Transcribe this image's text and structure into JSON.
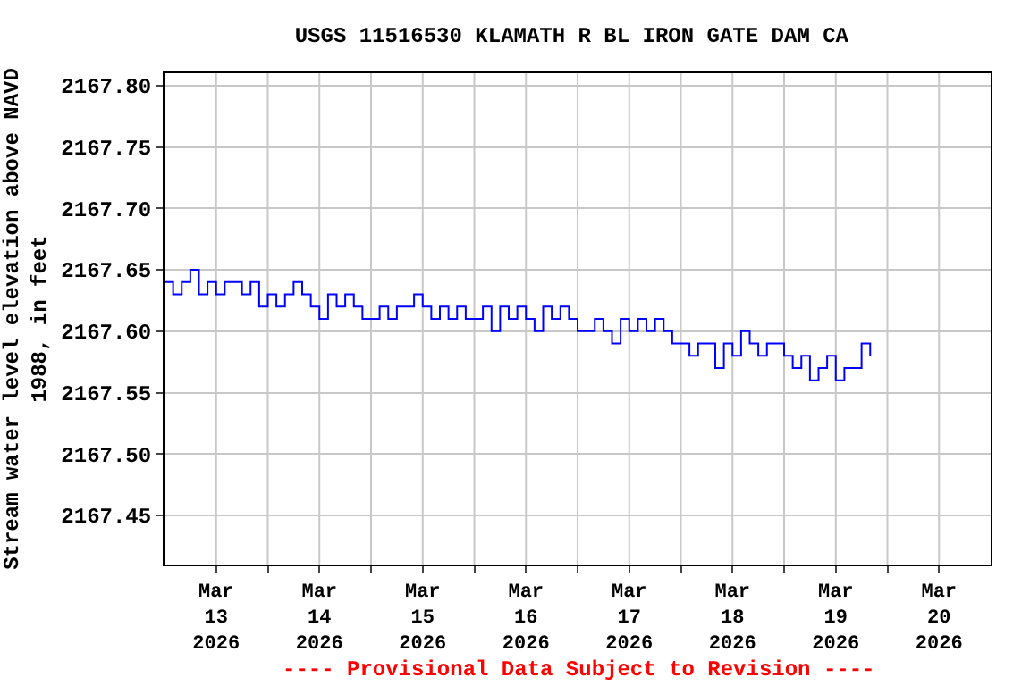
{
  "chart_data": {
    "type": "step",
    "title": "USGS 11516530 KLAMATH R BL IRON GATE DAM CA",
    "ylabel": "Stream water level elevation above NAVD\n1988, in feet",
    "annotations": [
      "---- Provisional Data Subject to Revision ----"
    ],
    "x": [
      "2026-03-13T00:00",
      "2026-03-13T02:00",
      "2026-03-13T04:00",
      "2026-03-13T06:00",
      "2026-03-13T08:00",
      "2026-03-13T10:00",
      "2026-03-13T12:00",
      "2026-03-13T14:00",
      "2026-03-13T16:00",
      "2026-03-13T18:00",
      "2026-03-13T20:00",
      "2026-03-13T22:00",
      "2026-03-14T00:00",
      "2026-03-14T02:00",
      "2026-03-14T04:00",
      "2026-03-14T06:00",
      "2026-03-14T08:00",
      "2026-03-14T10:00",
      "2026-03-14T12:00",
      "2026-03-14T14:00",
      "2026-03-14T16:00",
      "2026-03-14T18:00",
      "2026-03-14T20:00",
      "2026-03-14T22:00",
      "2026-03-15T00:00",
      "2026-03-15T02:00",
      "2026-03-15T04:00",
      "2026-03-15T06:00",
      "2026-03-15T08:00",
      "2026-03-15T10:00",
      "2026-03-15T12:00",
      "2026-03-15T14:00",
      "2026-03-15T16:00",
      "2026-03-15T18:00",
      "2026-03-15T20:00",
      "2026-03-15T22:00",
      "2026-03-16T00:00",
      "2026-03-16T02:00",
      "2026-03-16T04:00",
      "2026-03-16T06:00",
      "2026-03-16T08:00",
      "2026-03-16T10:00",
      "2026-03-16T12:00",
      "2026-03-16T14:00",
      "2026-03-16T16:00",
      "2026-03-16T18:00",
      "2026-03-16T20:00",
      "2026-03-16T22:00",
      "2026-03-17T00:00",
      "2026-03-17T02:00",
      "2026-03-17T04:00",
      "2026-03-17T06:00",
      "2026-03-17T08:00",
      "2026-03-17T10:00",
      "2026-03-17T12:00",
      "2026-03-17T14:00",
      "2026-03-17T16:00",
      "2026-03-17T18:00",
      "2026-03-17T20:00",
      "2026-03-17T22:00",
      "2026-03-18T00:00",
      "2026-03-18T02:00",
      "2026-03-18T04:00",
      "2026-03-18T06:00",
      "2026-03-18T08:00",
      "2026-03-18T10:00",
      "2026-03-18T12:00",
      "2026-03-18T14:00",
      "2026-03-18T16:00",
      "2026-03-18T18:00",
      "2026-03-18T20:00",
      "2026-03-18T22:00",
      "2026-03-19T00:00",
      "2026-03-19T02:00",
      "2026-03-19T04:00",
      "2026-03-19T06:00",
      "2026-03-19T08:00",
      "2026-03-19T10:00",
      "2026-03-19T12:00",
      "2026-03-19T14:00",
      "2026-03-19T16:00",
      "2026-03-19T18:00",
      "2026-03-19T20:00"
    ],
    "series": [
      {
        "color": "#0000ff",
        "values": [
          2167.64,
          2167.63,
          2167.64,
          2167.65,
          2167.63,
          2167.64,
          2167.63,
          2167.64,
          2167.64,
          2167.63,
          2167.64,
          2167.62,
          2167.63,
          2167.62,
          2167.63,
          2167.64,
          2167.63,
          2167.62,
          2167.61,
          2167.63,
          2167.62,
          2167.63,
          2167.62,
          2167.61,
          2167.61,
          2167.62,
          2167.61,
          2167.62,
          2167.62,
          2167.63,
          2167.62,
          2167.61,
          2167.62,
          2167.61,
          2167.62,
          2167.61,
          2167.61,
          2167.62,
          2167.6,
          2167.62,
          2167.61,
          2167.62,
          2167.61,
          2167.6,
          2167.62,
          2167.61,
          2167.62,
          2167.61,
          2167.6,
          2167.6,
          2167.61,
          2167.6,
          2167.59,
          2167.61,
          2167.6,
          2167.61,
          2167.6,
          2167.61,
          2167.6,
          2167.59,
          2167.59,
          2167.58,
          2167.59,
          2167.59,
          2167.57,
          2167.59,
          2167.58,
          2167.6,
          2167.59,
          2167.58,
          2167.59,
          2167.59,
          2167.58,
          2167.57,
          2167.58,
          2167.56,
          2167.57,
          2167.58,
          2167.56,
          2167.57,
          2167.57,
          2167.59,
          2167.58
        ]
      }
    ],
    "xlim": [
      "2026-03-13T00:00",
      "2026-03-21T00:00"
    ],
    "xticks": [
      {
        "value": "2026-03-13T12:00",
        "label": "Mar\n13\n2026"
      },
      {
        "value": "2026-03-14T12:00",
        "label": "Mar\n14\n2026"
      },
      {
        "value": "2026-03-15T12:00",
        "label": "Mar\n15\n2026"
      },
      {
        "value": "2026-03-16T12:00",
        "label": "Mar\n16\n2026"
      },
      {
        "value": "2026-03-17T12:00",
        "label": "Mar\n17\n2026"
      },
      {
        "value": "2026-03-18T12:00",
        "label": "Mar\n18\n2026"
      },
      {
        "value": "2026-03-19T12:00",
        "label": "Mar\n19\n2026"
      },
      {
        "value": "2026-03-20T12:00",
        "label": "Mar\n20\n2026"
      },
      {
        "value": "2026-03-14T00:00",
        "label": null
      },
      {
        "value": "2026-03-15T00:00",
        "label": null
      },
      {
        "value": "2026-03-16T00:00",
        "label": null
      },
      {
        "value": "2026-03-17T00:00",
        "label": null
      },
      {
        "value": "2026-03-18T00:00",
        "label": null
      },
      {
        "value": "2026-03-19T00:00",
        "label": null
      },
      {
        "value": "2026-03-20T00:00",
        "label": null
      }
    ],
    "ylim": [
      2167.41,
      2167.81
    ],
    "yticks": [
      {
        "value": 2167.45,
        "label": "2167.45"
      },
      {
        "value": 2167.5,
        "label": "2167.50"
      },
      {
        "value": 2167.55,
        "label": "2167.55"
      },
      {
        "value": 2167.6,
        "label": "2167.60"
      },
      {
        "value": 2167.65,
        "label": "2167.65"
      },
      {
        "value": 2167.7,
        "label": "2167.70"
      },
      {
        "value": 2167.75,
        "label": "2167.75"
      },
      {
        "value": 2167.8,
        "label": "2167.80"
      }
    ],
    "grid": true
  }
}
